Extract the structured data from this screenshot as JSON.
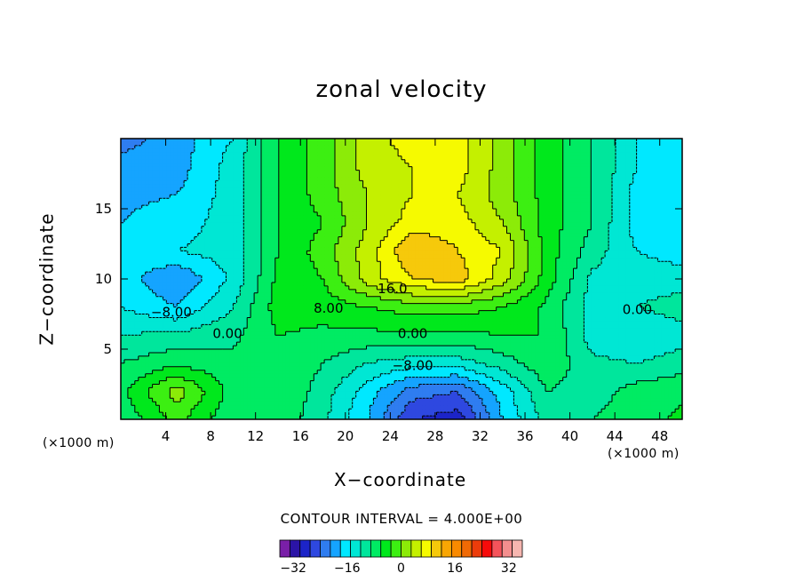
{
  "chart_data": {
    "type": "heatmap",
    "title": "zonal velocity",
    "xlabel": "X−coordinate",
    "ylabel": "Z−coordinate",
    "x_unit": "(×1000 m)",
    "y_unit": "(×1000 m)",
    "xlim": [
      0,
      50
    ],
    "ylim": [
      0,
      20
    ],
    "x_ticks": [
      4,
      8,
      12,
      16,
      20,
      24,
      28,
      32,
      36,
      40,
      44,
      48
    ],
    "y_ticks": [
      5,
      10,
      15
    ],
    "contour_interval_text": "CONTOUR INTERVAL = 4.000E+00",
    "contour_labels": [
      {
        "text": "16.0",
        "x": 24.2,
        "y": 9.0
      },
      {
        "text": "8.00",
        "x": 18.5,
        "y": 7.6
      },
      {
        "text": "−8.00",
        "x": 4.5,
        "y": 7.3
      },
      {
        "text": "0.00",
        "x": 9.5,
        "y": 5.8
      },
      {
        "text": "0.00",
        "x": 26.0,
        "y": 5.8
      },
      {
        "text": "−8.00",
        "x": 26.0,
        "y": 3.5
      },
      {
        "text": "0.00",
        "x": 46.0,
        "y": 7.5
      }
    ],
    "field_grid": {
      "x": [
        0,
        5,
        10,
        14,
        18,
        22,
        26,
        30,
        34,
        38,
        42,
        46,
        50
      ],
      "z": [
        0,
        2,
        4,
        6,
        8,
        10,
        12,
        14,
        16,
        18,
        20
      ],
      "values": [
        [
          1,
          9,
          1,
          3,
          -3,
          -12,
          -24,
          -26,
          -12,
          -2,
          0,
          2,
          5
        ],
        [
          3,
          14,
          2,
          4,
          -2,
          -10,
          -18,
          -20,
          -10,
          0,
          -2,
          2,
          3
        ],
        [
          0,
          3,
          1,
          4,
          0,
          -4,
          -6,
          -6,
          -2,
          3,
          -3,
          -4,
          -2
        ],
        [
          -4,
          -3,
          -1,
          4,
          3,
          3,
          3,
          3,
          4,
          4,
          -6,
          -8,
          -6
        ],
        [
          -8,
          -12,
          -4,
          6,
          6,
          8,
          10,
          10,
          8,
          3,
          -6,
          -4,
          -2
        ],
        [
          -10,
          -16,
          -7,
          5,
          8,
          18,
          24,
          26,
          18,
          6,
          -5,
          -6,
          -6
        ],
        [
          -10,
          -8,
          -6,
          4,
          10,
          18,
          28,
          24,
          20,
          6,
          -2,
          -8,
          -10
        ],
        [
          -12,
          -10,
          -6,
          4,
          8,
          16,
          22,
          22,
          16,
          6,
          0,
          -10,
          -12
        ],
        [
          -13,
          -12,
          -6,
          4,
          10,
          16,
          20,
          20,
          14,
          6,
          0,
          -10,
          -12
        ],
        [
          -14,
          -14,
          -6,
          4,
          10,
          18,
          20,
          22,
          14,
          6,
          0,
          -8,
          -10
        ],
        [
          -18,
          -14,
          -8,
          4,
          10,
          18,
          22,
          22,
          14,
          6,
          0,
          -8,
          -10
        ]
      ]
    },
    "colorbar": {
      "colors": [
        "#7a1fa8",
        "#2b14a6",
        "#1c24c8",
        "#2e48e0",
        "#2f7df0",
        "#15a4ff",
        "#00e8ff",
        "#00e7d4",
        "#00e69c",
        "#00eb63",
        "#00e81c",
        "#3cef12",
        "#8ceb08",
        "#c4f000",
        "#f6fa00",
        "#f6c90b",
        "#f8a604",
        "#f98a00",
        "#f06a05",
        "#ec3c0b",
        "#f70b0b",
        "#f5535b",
        "#f48e8e",
        "#f6b6b0"
      ],
      "min": -36,
      "max": 36,
      "step": 4,
      "tick_values": [
        -32,
        -16,
        0,
        16,
        32
      ],
      "tick_labels": [
        "−32",
        "−16",
        "0",
        "16",
        "32"
      ]
    }
  }
}
